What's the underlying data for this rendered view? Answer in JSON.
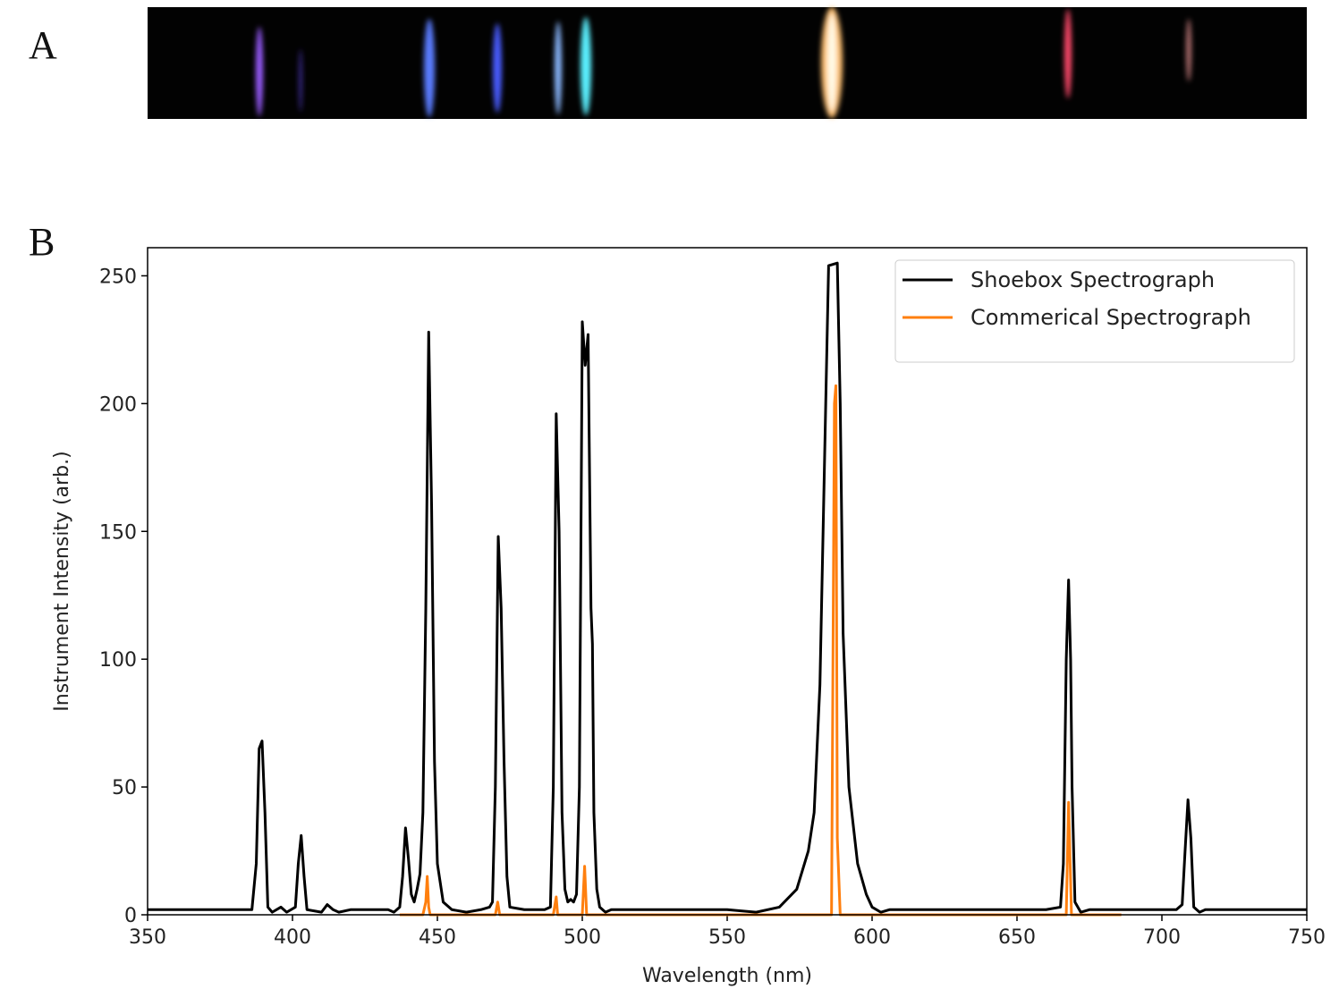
{
  "panels": [
    "A",
    "B"
  ],
  "chart_data": {
    "type": "line",
    "xlabel": "Wavelength (nm)",
    "ylabel": "Instrument Intensity (arb.)",
    "xlim": [
      350,
      750
    ],
    "ylim": [
      0,
      261
    ],
    "xticks": [
      350,
      400,
      450,
      500,
      550,
      600,
      650,
      700,
      750
    ],
    "yticks": [
      0,
      50,
      100,
      150,
      200,
      250
    ],
    "grid": false,
    "legend": "upper right",
    "series": [
      {
        "name": "Shoebox Spectrograph",
        "color": "#000000",
        "x": [
          350,
          386,
          387.5,
          388.5,
          389.5,
          390.5,
          391.5,
          393,
          396,
          398,
          401,
          402,
          403,
          404,
          405,
          410,
          412,
          414,
          416,
          420,
          433,
          435,
          437,
          438,
          439,
          440,
          441,
          442,
          443,
          444,
          445,
          446,
          447,
          448,
          449,
          450,
          452,
          455,
          460,
          465,
          468,
          469,
          470,
          471,
          472,
          473,
          474,
          475,
          480,
          487,
          489,
          490,
          491,
          492,
          493,
          494,
          495,
          496,
          497,
          498,
          499,
          500,
          501,
          502,
          503,
          503.5,
          504,
          505,
          506,
          508,
          510,
          520,
          550,
          560,
          568,
          574,
          578,
          580,
          582,
          584,
          585,
          588,
          589,
          590,
          592,
          595,
          598,
          600,
          603,
          606,
          660,
          665,
          666,
          667,
          667.8,
          668.5,
          669,
          670,
          672,
          675,
          705,
          707,
          708,
          709,
          710,
          711,
          713,
          715,
          750
        ],
        "values": [
          2,
          2,
          20,
          65,
          68,
          40,
          3,
          1,
          3,
          1,
          3,
          20,
          31,
          15,
          2,
          1,
          4,
          2,
          1,
          2,
          2,
          1,
          3,
          15,
          34,
          22,
          8,
          5,
          10,
          16,
          40,
          120,
          228,
          160,
          60,
          20,
          5,
          2,
          1,
          2,
          3,
          5,
          50,
          148,
          120,
          60,
          15,
          3,
          2,
          2,
          3,
          50,
          196,
          150,
          40,
          10,
          5,
          6,
          5,
          8,
          50,
          232,
          215,
          227,
          120,
          106,
          40,
          10,
          3,
          1,
          2,
          2,
          2,
          1,
          3,
          10,
          25,
          40,
          90,
          200,
          254,
          255,
          200,
          110,
          50,
          20,
          8,
          3,
          1,
          2,
          2,
          3,
          20,
          100,
          131,
          100,
          50,
          5,
          1,
          2,
          2,
          4,
          25,
          45,
          30,
          3,
          1,
          2,
          2
        ]
      },
      {
        "name": "Commerical Spectrograph",
        "color": "#ff7f0e",
        "x": [
          437,
          445,
          446,
          446.5,
          447,
          447.5,
          470,
          470.8,
          471.5,
          490,
          491,
          491.5,
          500,
          500.8,
          501.5,
          586,
          587,
          587.5,
          588,
          589,
          667,
          667.8,
          668.8,
          686
        ],
        "values": [
          0,
          0,
          5,
          15,
          3,
          0,
          0,
          5,
          0,
          0,
          7,
          0,
          0,
          19,
          0,
          0,
          200,
          207,
          30,
          0,
          0,
          44,
          0,
          0
        ]
      }
    ]
  }
}
